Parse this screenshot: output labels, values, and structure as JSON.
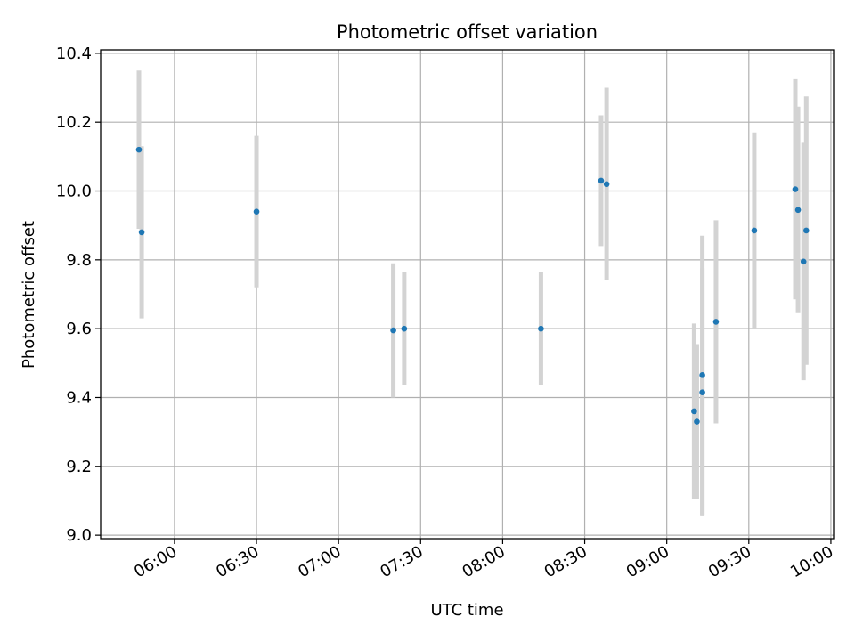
{
  "chart_data": {
    "type": "scatter",
    "title": "Photometric offset variation",
    "xlabel": "UTC time",
    "ylabel": "Photometric offset",
    "grid": true,
    "xlim": [
      "05:33",
      "10:01"
    ],
    "ylim": [
      8.99,
      10.41
    ],
    "x_ticks": [
      "06:00",
      "06:30",
      "07:00",
      "07:30",
      "08:00",
      "08:30",
      "09:00",
      "09:30",
      "10:00"
    ],
    "y_ticks": [
      "9.0",
      "9.2",
      "9.4",
      "9.6",
      "9.8",
      "10.0",
      "10.2",
      "10.4"
    ],
    "colors": {
      "point": "#1f77b4",
      "errorbar": "#d3d3d3",
      "grid": "#b0b0b0"
    },
    "series": [
      {
        "name": "offset",
        "points": [
          {
            "time": "05:47",
            "y": 10.12,
            "yerr": 0.23
          },
          {
            "time": "05:48",
            "y": 9.88,
            "yerr": 0.25
          },
          {
            "time": "06:30",
            "y": 9.94,
            "yerr": 0.22
          },
          {
            "time": "07:20",
            "y": 9.595,
            "yerr": 0.195
          },
          {
            "time": "07:24",
            "y": 9.6,
            "yerr": 0.165
          },
          {
            "time": "08:14",
            "y": 9.6,
            "yerr": 0.165
          },
          {
            "time": "08:36",
            "y": 10.03,
            "yerr": 0.19
          },
          {
            "time": "08:38",
            "y": 10.02,
            "yerr": 0.28
          },
          {
            "time": "09:10",
            "y": 9.36,
            "yerr": 0.255
          },
          {
            "time": "09:11",
            "y": 9.33,
            "yerr": 0.225
          },
          {
            "time": "09:13",
            "y": 9.415,
            "yerr": 0.36
          },
          {
            "time": "09:13",
            "y": 9.465,
            "yerr": 0.405
          },
          {
            "time": "09:18",
            "y": 9.62,
            "yerr": 0.295
          },
          {
            "time": "09:32",
            "y": 9.885,
            "yerr": 0.285
          },
          {
            "time": "09:47",
            "y": 10.005,
            "yerr": 0.32
          },
          {
            "time": "09:48",
            "y": 9.945,
            "yerr": 0.3
          },
          {
            "time": "09:50",
            "y": 9.795,
            "yerr": 0.345
          },
          {
            "time": "09:51",
            "y": 9.885,
            "yerr": 0.39
          }
        ]
      }
    ]
  }
}
